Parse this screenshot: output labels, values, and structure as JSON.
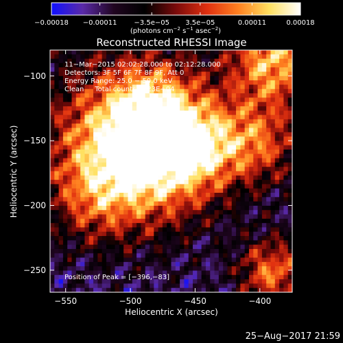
{
  "chart_data": {
    "type": "heatmap",
    "title": "Reconstructed RHESSI Image",
    "xlabel": "Heliocentric X (arcsec)",
    "ylabel": "Heliocentric Y (arcsec)",
    "xlim": [
      -562,
      -375
    ],
    "ylim": [
      -267,
      -80
    ],
    "x_ticks": [
      -550,
      -500,
      -450,
      -400
    ],
    "y_ticks": [
      -250,
      -200,
      -150,
      -100
    ],
    "x_tick_labels": [
      "−550",
      "−500",
      "−450",
      "−400"
    ],
    "y_tick_labels": [
      "−250",
      "−200",
      "−150",
      "−100"
    ],
    "colorbar": {
      "range": [
        -0.00018,
        0.00018
      ],
      "tick_values": [
        -0.00018,
        -0.00011,
        -3.5e-05,
        3.5e-05,
        0.00011,
        0.00018
      ],
      "tick_labels": [
        "−0.00018",
        "−0.00011",
        "−3.5e−05",
        "3.5e−05",
        "0.00011",
        "0.00018"
      ],
      "unit_prefix": "(photons cm",
      "unit_exp1": "−2",
      "unit_mid": " s",
      "unit_exp2": "−1",
      "unit_mid2": " asec",
      "unit_exp3": "−2",
      "unit_suffix": ")",
      "colors": [
        "#1010ff",
        "#5a2aa8",
        "#200520",
        "#000000",
        "#7a0a0a",
        "#e03010",
        "#ff8020",
        "#ffe060",
        "#ffffff"
      ]
    },
    "annotations": [
      "11−Mar−2015 02:02:28.000 to 02:12:28.000",
      "Detectors: 3F 5F 6F 7F 8F 9F, Att 0",
      "Energy Range: 25.0 − 50.0 keV",
      "Clean     Total counts: 1.23E+04"
    ],
    "peak_label": "Position of Peak = [−396,−83]",
    "grid": false
  },
  "footer_timestamp": "25−Aug−2017 21:59"
}
